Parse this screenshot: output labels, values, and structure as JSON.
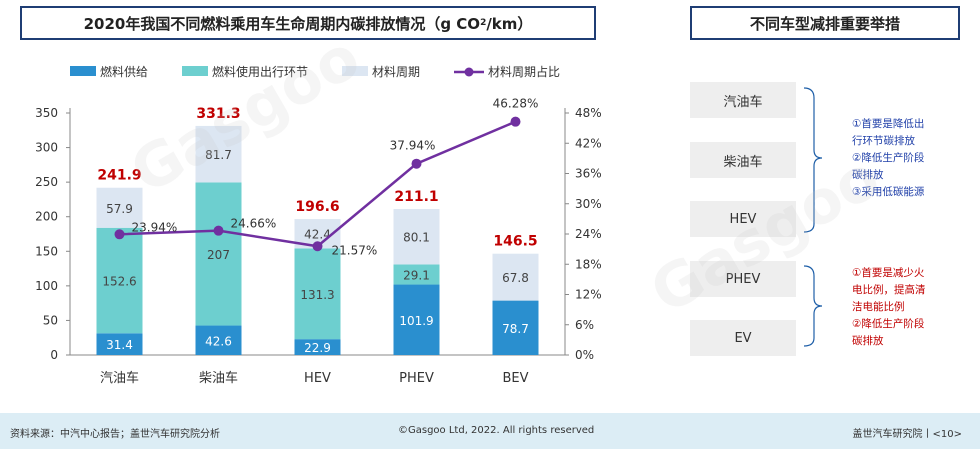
{
  "left_title": "2020年我国不同燃料乘用车生命周期内碳排放情况（g CO",
  "left_title_sub": "2",
  "left_title_end": "/km）",
  "right_title": "不同车型减排重要举措",
  "chart_data": {
    "type": "bar",
    "stacked": true,
    "categories": [
      "汽油车",
      "柴油车",
      "HEV",
      "PHEV",
      "BEV"
    ],
    "series": [
      {
        "name": "燃料供给",
        "values": [
          31.4,
          42.6,
          22.9,
          101.9,
          78.7
        ],
        "color": "#2a8fcf",
        "label_color": "#ffffff"
      },
      {
        "name": "燃料使用出行环节",
        "values": [
          152.6,
          207,
          131.3,
          29.1,
          0
        ],
        "color": "#6dcfcf",
        "label_color": "#444444"
      },
      {
        "name": "材料周期",
        "values": [
          57.9,
          81.7,
          42.4,
          80.1,
          67.8
        ],
        "color": "#dce6f2",
        "label_color": "#444444"
      }
    ],
    "totals": [
      241.9,
      331.3,
      196.6,
      211.1,
      146.5
    ],
    "total_color": "#c00000",
    "line_series": {
      "name": "材料周期占比",
      "values": [
        23.94,
        24.66,
        21.57,
        37.94,
        46.28
      ],
      "labels": [
        "23.94%",
        "24.66%",
        "21.57%",
        "37.94%",
        "46.28%"
      ],
      "color": "#7030a0"
    },
    "ylim": [
      0,
      350
    ],
    "yticks": [
      0,
      50,
      100,
      150,
      200,
      250,
      300,
      350
    ],
    "y2lim": [
      0,
      48
    ],
    "y2ticks": [
      0,
      6,
      12,
      18,
      24,
      30,
      36,
      42,
      48
    ],
    "y2tick_labels": [
      "0%",
      "6%",
      "12%",
      "18%",
      "24%",
      "30%",
      "36%",
      "42%",
      "48%"
    ],
    "legend_position": "top"
  },
  "measures": {
    "boxes": [
      "汽油车",
      "柴油车",
      "HEV",
      "PHEV",
      "EV"
    ],
    "note1": [
      "①首要是降低出",
      "行环节碳排放",
      "②降低生产阶段",
      "碳排放",
      "③采用低碳能源"
    ],
    "note2": [
      "①首要是减少火",
      "电比例，提高清",
      "洁电能比例",
      "②降低生产阶段",
      "碳排放"
    ]
  },
  "footer": {
    "source": "资料来源：中汽中心报告；盖世汽车研究院分析",
    "copyright": "©Gasgoo Ltd, 2022. All rights reserved",
    "page": "盖世汽车研究院丨<10>"
  },
  "colors": {
    "border": "#1f3d74",
    "bracket": "#1f5fa8"
  }
}
